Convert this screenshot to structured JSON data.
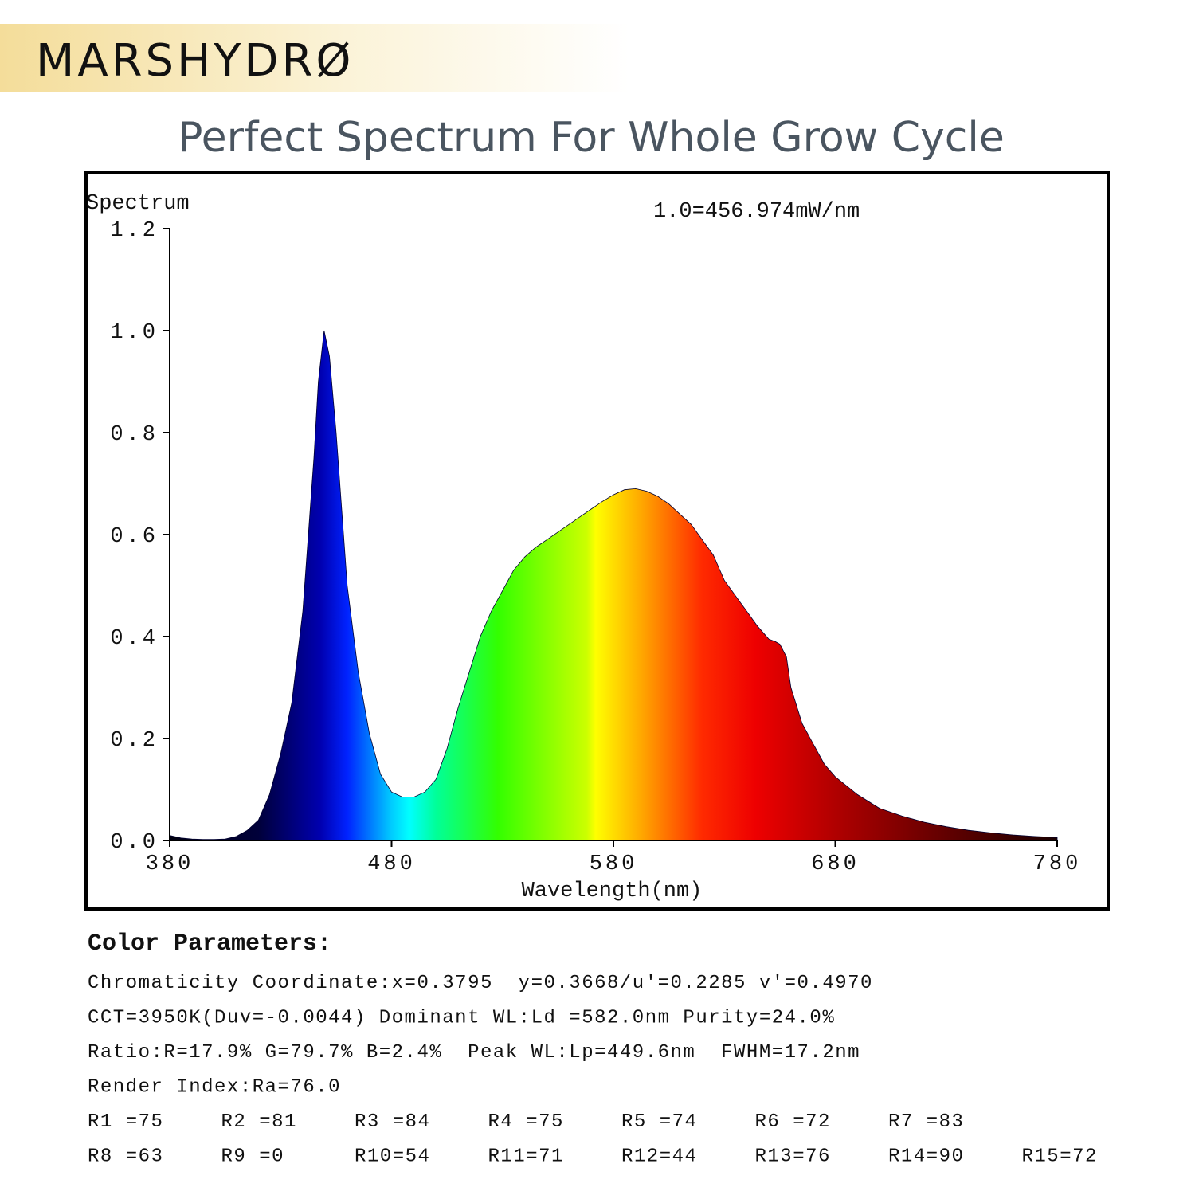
{
  "brand": "MARSHYDRØ",
  "headline": "Perfect Spectrum For Whole Grow Cycle",
  "chart_data": {
    "type": "area",
    "y_label": "Spectrum",
    "x_label": "Wavelength(nm)",
    "annotation": "1.0=456.974mW/nm",
    "x": [
      380,
      385,
      390,
      395,
      400,
      405,
      410,
      415,
      420,
      425,
      430,
      435,
      440,
      445,
      447,
      449.6,
      452,
      455,
      460,
      465,
      470,
      475,
      480,
      485,
      490,
      495,
      500,
      505,
      510,
      515,
      520,
      525,
      530,
      535,
      540,
      545,
      550,
      555,
      560,
      565,
      570,
      575,
      580,
      585,
      590,
      595,
      600,
      605,
      610,
      615,
      620,
      625,
      630,
      635,
      640,
      645,
      650,
      653,
      655,
      658,
      660,
      665,
      670,
      675,
      680,
      690,
      700,
      710,
      720,
      730,
      740,
      750,
      760,
      770,
      780
    ],
    "values": [
      0.01,
      0.005,
      0.003,
      0.002,
      0.002,
      0.003,
      0.008,
      0.02,
      0.04,
      0.09,
      0.17,
      0.27,
      0.45,
      0.75,
      0.9,
      1.0,
      0.95,
      0.8,
      0.5,
      0.33,
      0.21,
      0.13,
      0.095,
      0.085,
      0.085,
      0.095,
      0.12,
      0.18,
      0.26,
      0.33,
      0.4,
      0.45,
      0.49,
      0.53,
      0.556,
      0.575,
      0.59,
      0.605,
      0.62,
      0.635,
      0.65,
      0.665,
      0.678,
      0.688,
      0.69,
      0.685,
      0.675,
      0.66,
      0.64,
      0.62,
      0.59,
      0.56,
      0.51,
      0.48,
      0.45,
      0.42,
      0.395,
      0.39,
      0.385,
      0.36,
      0.3,
      0.23,
      0.19,
      0.15,
      0.125,
      0.09,
      0.063,
      0.048,
      0.036,
      0.027,
      0.02,
      0.015,
      0.011,
      0.008,
      0.006
    ],
    "xlim": [
      380,
      780
    ],
    "xticks": [
      380,
      480,
      580,
      680,
      780
    ],
    "ylim": [
      0,
      1.2
    ],
    "yticks": [
      {
        "value": 0,
        "label": "0.0"
      },
      0.2,
      0.4,
      0.6,
      0.8,
      {
        "value": 1,
        "label": "1.0"
      },
      1.2
    ],
    "grid": false
  },
  "parameters": {
    "heading": "Color Parameters:",
    "lines": [
      "Chromaticity Coordinate:x=0.3795  y=0.3668/u'=0.2285 v'=0.4970",
      "CCT=3950K(Duv=-0.0044) Dominant WL:Ld =582.0nm Purity=24.0%",
      "Ratio:R=17.9% G=79.7% B=2.4%  Peak WL:Lp=449.6nm  FWHM=17.2nm",
      "Render Index:Ra=76.0"
    ],
    "rows": [
      [
        "R1 =75",
        "R2 =81",
        "R3 =84",
        "R4 =75",
        "R5 =74",
        "R6 =72",
        "R7 =83"
      ],
      [
        "R8 =63",
        "R9 =0",
        "R10=54",
        "R11=71",
        "R12=44",
        "R13=76",
        "R14=90",
        "R15=72"
      ]
    ]
  }
}
